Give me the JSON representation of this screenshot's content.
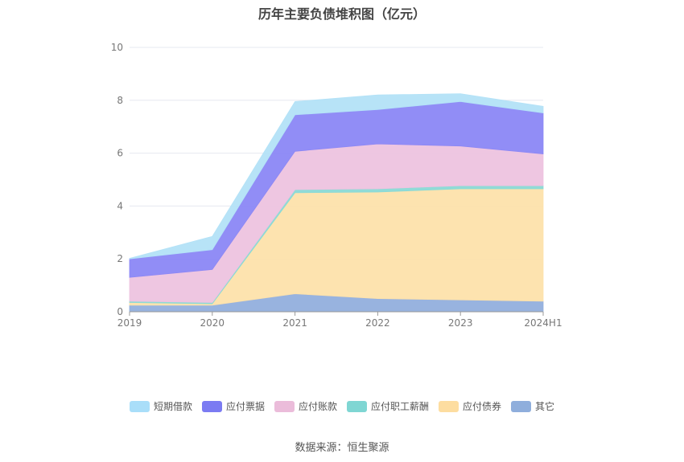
{
  "chart_data": {
    "type": "area",
    "stacked": true,
    "title": "历年主要负债堆积图（亿元）",
    "categories": [
      "2019",
      "2020",
      "2021",
      "2022",
      "2023",
      "2024H1"
    ],
    "ylim": [
      0,
      10
    ],
    "yticks": [
      0,
      2,
      4,
      6,
      8,
      10
    ],
    "grid": true,
    "legend_position": "bottom",
    "series": [
      {
        "name": "其它",
        "color": "#92AFDD",
        "values": [
          0.25,
          0.25,
          0.68,
          0.5,
          0.45,
          0.4
        ]
      },
      {
        "name": "应付债券",
        "color": "#FDE1AB",
        "values": [
          0.1,
          0.05,
          3.82,
          4.03,
          4.2,
          4.25
        ]
      },
      {
        "name": "应付职工薪酬",
        "color": "#8AD9D5",
        "values": [
          0.05,
          0.05,
          0.12,
          0.12,
          0.12,
          0.12
        ]
      },
      {
        "name": "应付账款",
        "color": "#EDC3DF",
        "values": [
          0.9,
          1.25,
          1.45,
          1.7,
          1.5,
          1.2
        ]
      },
      {
        "name": "应付票据",
        "color": "#8B87F5",
        "values": [
          0.7,
          0.75,
          1.38,
          1.3,
          1.68,
          1.55
        ]
      },
      {
        "name": "短期借款",
        "color": "#B3E2F7",
        "values": [
          0.02,
          0.5,
          0.5,
          0.55,
          0.3,
          0.25
        ]
      }
    ]
  },
  "legend_order": [
    "短期借款",
    "应付票据",
    "应付账款",
    "应付职工薪酬",
    "应付债券",
    "其它"
  ],
  "legend_colors": {
    "短期借款": "#A9DEF9",
    "应付票据": "#7B7BF2",
    "应付账款": "#EBBCDA",
    "应付职工薪酬": "#7FD6D3",
    "应付债券": "#FDDDA0",
    "其它": "#8FAEDC"
  },
  "source": "数据来源：恒生聚源"
}
